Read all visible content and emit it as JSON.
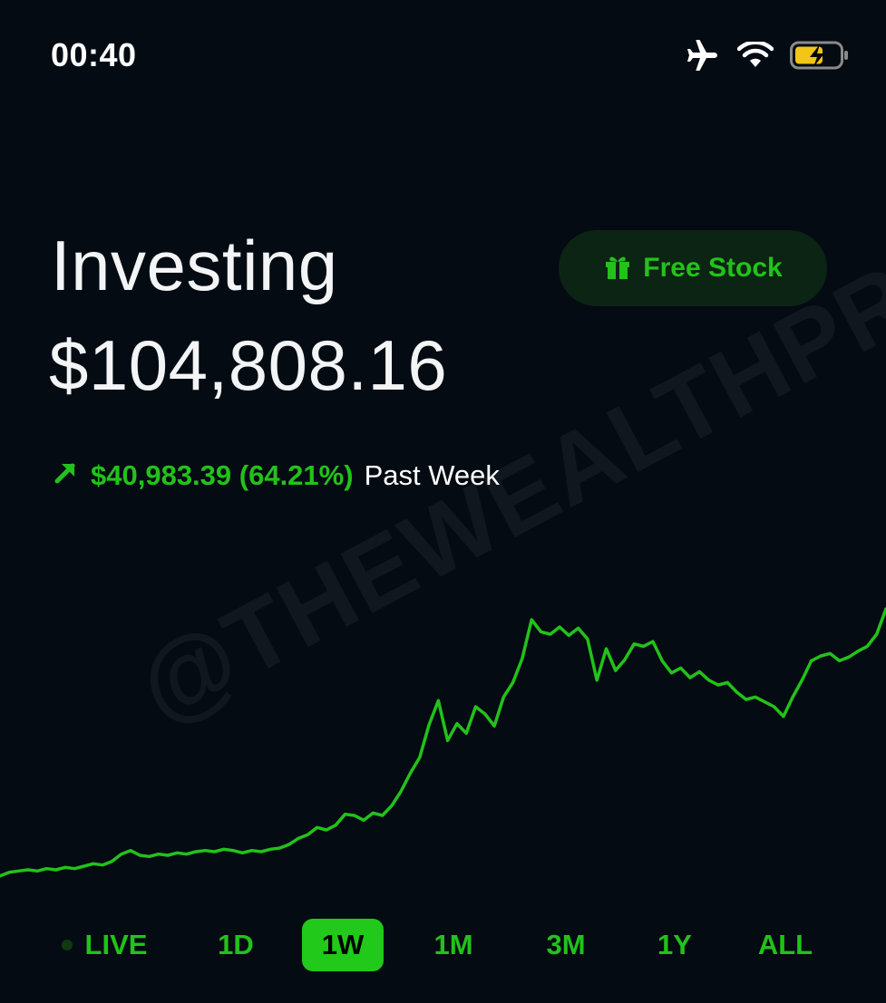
{
  "status_bar": {
    "time": "00:40",
    "icons": [
      "airplane-icon",
      "wifi-icon",
      "battery-charging-icon"
    ]
  },
  "header": {
    "title": "Investing",
    "balance": "$104,808.16",
    "free_stock_label": "Free Stock"
  },
  "change": {
    "amount": "$40,983.39 (64.21%)",
    "period": "Past Week",
    "direction": "up"
  },
  "watermark": "@THEWEALTHPRINCE",
  "ranges": [
    "LIVE",
    "1D",
    "1W",
    "1M",
    "3M",
    "1Y",
    "ALL"
  ],
  "active_range": "1W",
  "colors": {
    "background": "#050b12",
    "accent_green": "#22c21a",
    "pill_bg": "#0c2414",
    "active_range_bg": "#21c91a"
  },
  "chart_data": {
    "type": "line",
    "series": [
      {
        "values": [
          100,
          103,
          104,
          105,
          104,
          106,
          105,
          107,
          106,
          108,
          110,
          109,
          112,
          118,
          121,
          117,
          116,
          118,
          117,
          119,
          118,
          120,
          121,
          120,
          122,
          121,
          119,
          121,
          120,
          122,
          123,
          126,
          131,
          134,
          140,
          138,
          142,
          151,
          150,
          146,
          152,
          150,
          158,
          170,
          185,
          198,
          225,
          245,
          212,
          226,
          218,
          240,
          234,
          224,
          248,
          260,
          280,
          312,
          302,
          300,
          306,
          299,
          305,
          296,
          262,
          288,
          270,
          279,
          292,
          290,
          294,
          278,
          268,
          272,
          264,
          269,
          262,
          258,
          260,
          252,
          246,
          248,
          244,
          240,
          232,
          248,
          262,
          278,
          282,
          284,
          278,
          281,
          286,
          290,
          300,
          321
        ]
      }
    ],
    "ylim": [
      90,
      330
    ]
  }
}
